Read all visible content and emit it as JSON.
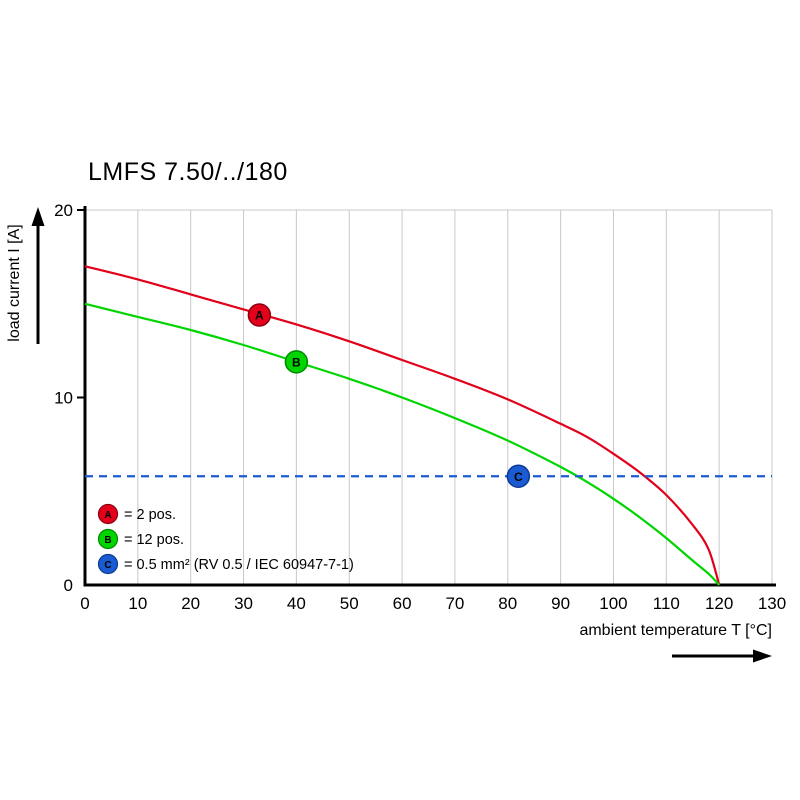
{
  "chart_data": {
    "type": "line",
    "title": "LMFS 7.50/../180",
    "xlabel": "ambient temperature T [°C]",
    "ylabel": "load current I [A]",
    "xlim": [
      0,
      130
    ],
    "ylim": [
      0,
      20
    ],
    "x_ticks": [
      0,
      10,
      20,
      30,
      40,
      50,
      60,
      70,
      80,
      90,
      100,
      110,
      120,
      130
    ],
    "y_ticks": [
      0,
      10,
      20
    ],
    "grid": "vertical-gridlines-plus-top-border",
    "legend_position": "bottom-left-inside",
    "colors": {
      "grid": "#c8c8c8",
      "axis": "#000000",
      "background": "#ffffff"
    },
    "series": [
      {
        "id": "A",
        "legend_label": "= 2 pos.",
        "color": "#e2001a",
        "marker_stroke": "#8e0010",
        "line_style": "solid",
        "x": [
          0,
          10,
          20,
          30,
          40,
          50,
          60,
          70,
          80,
          90,
          95,
          100,
          105,
          110,
          115,
          118,
          120
        ],
        "y": [
          17,
          16.3,
          15.5,
          14.7,
          13.9,
          13,
          12,
          11,
          9.9,
          8.6,
          7.9,
          7,
          6,
          4.8,
          3.2,
          1.9,
          0
        ],
        "marker_at": {
          "x": 33,
          "y": 14.4
        }
      },
      {
        "id": "B",
        "legend_label": "= 12 pos.",
        "color": "#00d500",
        "marker_stroke": "#008a00",
        "line_style": "solid",
        "x": [
          0,
          10,
          20,
          30,
          40,
          50,
          60,
          70,
          80,
          90,
          95,
          100,
          105,
          110,
          115,
          118,
          120
        ],
        "y": [
          15,
          14.3,
          13.6,
          12.8,
          11.9,
          11,
          10,
          8.9,
          7.7,
          6.3,
          5.5,
          4.6,
          3.6,
          2.5,
          1.3,
          0.6,
          0
        ],
        "marker_at": {
          "x": 40,
          "y": 11.9
        }
      },
      {
        "id": "C",
        "legend_label": "= 0.5 mm² (RV 0.5 / IEC 60947-7-1)",
        "color": "#1b5bd2",
        "marker_stroke": "#0d3a96",
        "line_style": "dashed",
        "x": [
          0,
          130
        ],
        "y": [
          5.8,
          5.8
        ],
        "marker_at": {
          "x": 82,
          "y": 5.8
        }
      }
    ]
  }
}
